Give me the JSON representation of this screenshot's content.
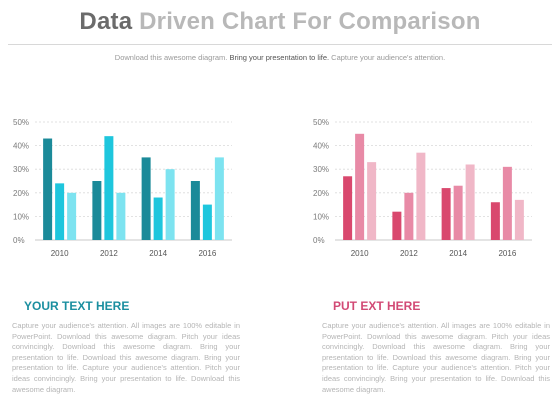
{
  "header": {
    "title_word1": "Data",
    "title_rest": " Driven Chart For Comparison",
    "subtitle_pre": "Download this awesome diagram.",
    "subtitle_bold": " Bring your presentation to life.",
    "subtitle_post": " Capture your audience's attention."
  },
  "colors": {
    "left_series": [
      "#1b8a99",
      "#1ec6dd",
      "#7de3f0"
    ],
    "right_series": [
      "#d9486e",
      "#e88aa6",
      "#f0b7c7"
    ],
    "left_heading": "#1b8fa0",
    "right_heading": "#d24a75"
  },
  "chart_data": [
    {
      "type": "bar",
      "categories": [
        "2010",
        "2012",
        "2014",
        "2016"
      ],
      "yticks": [
        "0%",
        "10%",
        "20%",
        "30%",
        "40%",
        "50%"
      ],
      "ylim": [
        0,
        50
      ],
      "grid": true,
      "series": [
        {
          "values": [
            43,
            25,
            35,
            25
          ]
        },
        {
          "values": [
            24,
            44,
            18,
            15
          ]
        },
        {
          "values": [
            20,
            20,
            30,
            35
          ]
        }
      ]
    },
    {
      "type": "bar",
      "categories": [
        "2010",
        "2012",
        "2014",
        "2016"
      ],
      "yticks": [
        "0%",
        "10%",
        "20%",
        "30%",
        "40%",
        "50%"
      ],
      "ylim": [
        0,
        50
      ],
      "grid": true,
      "series": [
        {
          "values": [
            27,
            12,
            22,
            16
          ]
        },
        {
          "values": [
            45,
            20,
            23,
            31
          ]
        },
        {
          "values": [
            33,
            37,
            32,
            17
          ]
        }
      ]
    }
  ],
  "left_text": {
    "heading": "YOUR TEXT HERE",
    "body": "Capture your audience's attention. All images are 100% editable in PowerPoint. Download this awesome diagram. Pitch your ideas convincingly. Download this awesome diagram. Bring your presentation to life. Download this awesome diagram. Bring your presentation to life. Capture your audience's attention. Pitch your ideas convincingly. Bring your presentation to life. Download this awesome diagram."
  },
  "right_text": {
    "heading": "PUT EXT HERE",
    "body": "Capture your audience's attention. All images are 100% editable in PowerPoint. Download this awesome diagram. Pitch your ideas convincingly. Download this awesome diagram. Bring your presentation to life. Download this awesome diagram. Bring your presentation to life. Capture your audience's attention. Pitch your ideas convincingly. Bring your presentation to life. Download this awesome diagram."
  }
}
